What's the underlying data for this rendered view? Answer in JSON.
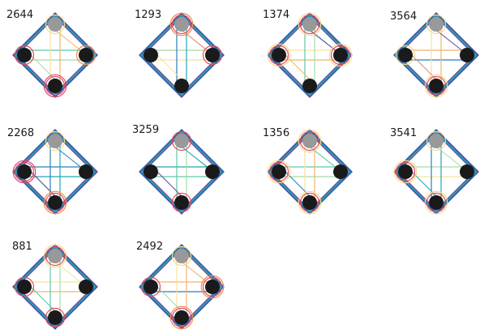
{
  "colors": {
    "background": "#ffffff",
    "label": "#1a1a1a",
    "node_grey": "#999999",
    "node_black": "#1a1a1a",
    "ring_red": "#e8485a",
    "ring_orange": "#f08a4b",
    "ring_yellow": "#f6d98a",
    "ring_pink": "#e0457b",
    "path_palette": [
      "#3f4a9a",
      "#6a4c9c",
      "#2a7fb8",
      "#23a7b0",
      "#5cc9a7",
      "#a8dba8",
      "#f6e3a1",
      "#f2b36b",
      "#e98a6b"
    ]
  },
  "diagrams": [
    {
      "label": "2644",
      "nodes": {
        "top": "grey",
        "left": "black",
        "right": "black",
        "bottom": "black"
      },
      "rings": {
        "top": [
          "ring_yellow"
        ],
        "left": [
          "ring_red"
        ],
        "right": [
          "ring_orange"
        ],
        "bottom": [
          "ring_pink",
          "ring_red"
        ]
      }
    },
    {
      "label": "1293",
      "nodes": {
        "top": "grey",
        "left": "black",
        "right": "black",
        "bottom": "black"
      },
      "rings": {
        "top": [
          "ring_red",
          "ring_orange"
        ],
        "left": [],
        "right": [
          "ring_red"
        ],
        "bottom": []
      }
    },
    {
      "label": "1374",
      "nodes": {
        "top": "grey",
        "left": "black",
        "right": "black",
        "bottom": "black"
      },
      "rings": {
        "top": [
          "ring_red",
          "ring_yellow"
        ],
        "left": [
          "ring_red",
          "ring_yellow"
        ],
        "right": [
          "ring_red",
          "ring_yellow"
        ],
        "bottom": []
      }
    },
    {
      "label": "3564",
      "nodes": {
        "top": "grey",
        "left": "black",
        "right": "black",
        "bottom": "black"
      },
      "rings": {
        "top": [
          "ring_yellow"
        ],
        "left": [
          "ring_yellow"
        ],
        "right": [],
        "bottom": [
          "ring_red",
          "ring_yellow"
        ]
      }
    },
    {
      "label": "2268",
      "nodes": {
        "top": "grey",
        "left": "black",
        "right": "black",
        "bottom": "black"
      },
      "rings": {
        "top": [
          "ring_yellow"
        ],
        "left": [
          "ring_red",
          "ring_pink"
        ],
        "right": [],
        "bottom": [
          "ring_red",
          "ring_orange"
        ]
      }
    },
    {
      "label": "3259",
      "nodes": {
        "top": "grey",
        "left": "black",
        "right": "black",
        "bottom": "black"
      },
      "rings": {
        "top": [
          "ring_red"
        ],
        "left": [],
        "right": [],
        "bottom": [
          "ring_red"
        ]
      }
    },
    {
      "label": "1356",
      "nodes": {
        "top": "grey",
        "left": "black",
        "right": "black",
        "bottom": "black"
      },
      "rings": {
        "top": [
          "ring_red",
          "ring_yellow"
        ],
        "left": [
          "ring_red",
          "ring_yellow"
        ],
        "right": [],
        "bottom": [
          "ring_red",
          "ring_yellow"
        ]
      }
    },
    {
      "label": "3541",
      "nodes": {
        "top": "grey",
        "left": "black",
        "right": "black",
        "bottom": "black"
      },
      "rings": {
        "top": [
          "ring_yellow"
        ],
        "left": [
          "ring_red",
          "ring_yellow"
        ],
        "right": [],
        "bottom": [
          "ring_red",
          "ring_yellow"
        ]
      }
    },
    {
      "label": "881",
      "nodes": {
        "top": "grey",
        "left": "black",
        "right": "black",
        "bottom": "black"
      },
      "rings": {
        "top": [
          "ring_red",
          "ring_yellow"
        ],
        "left": [
          "ring_red"
        ],
        "right": [],
        "bottom": [
          "ring_red"
        ]
      }
    },
    {
      "label": "2492",
      "nodes": {
        "top": "grey",
        "left": "black",
        "right": "black",
        "bottom": "black"
      },
      "rings": {
        "top": [
          "ring_yellow"
        ],
        "left": [
          "ring_red"
        ],
        "right": [
          "ring_red",
          "ring_orange"
        ],
        "bottom": [
          "ring_pink",
          "ring_orange"
        ]
      }
    }
  ]
}
